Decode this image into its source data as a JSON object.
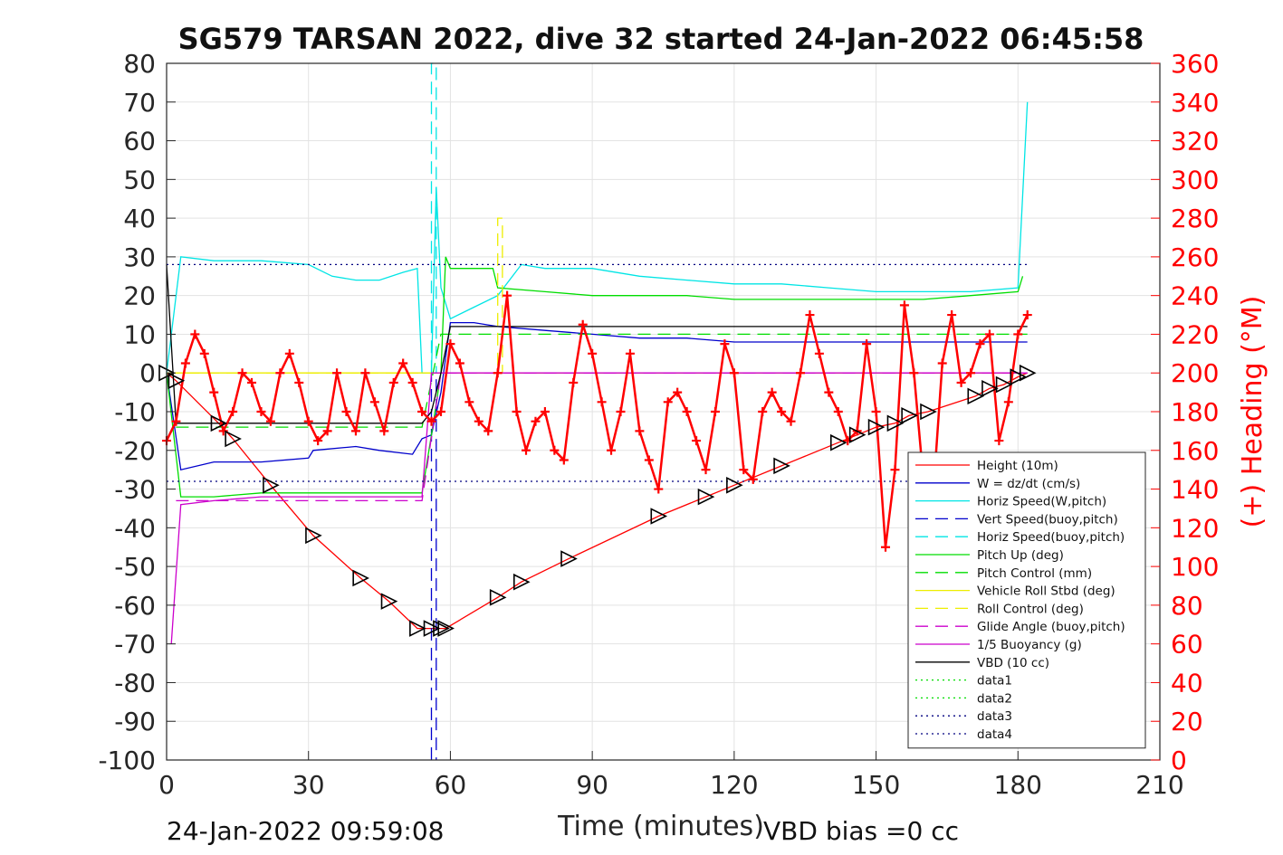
{
  "chart_data": {
    "type": "line",
    "title": "SG579 TARSAN 2022, dive 32 started 24-Jan-2022 06:45:58",
    "xlabel": "Time (minutes)",
    "ylabel_right": "(+) Heading (°M)",
    "footer_left": "24-Jan-2022 09:59:08",
    "footer_right": "VBD bias =0 cc",
    "xlim": [
      0,
      210
    ],
    "ylim": [
      -100,
      80
    ],
    "ylim_right": [
      0,
      360
    ],
    "xticks": [
      0,
      30,
      60,
      90,
      120,
      150,
      180,
      210
    ],
    "xtick_labels": [
      "0",
      "30",
      "60",
      "90",
      "120",
      "150",
      "180",
      "210"
    ],
    "yticks": [
      80,
      70,
      60,
      50,
      40,
      30,
      20,
      10,
      0,
      -10,
      -20,
      -30,
      -40,
      -50,
      -60,
      -70,
      -80,
      -90,
      -100
    ],
    "ytick_labels": [
      "80",
      "70",
      "60",
      "50",
      "40",
      "30",
      "20",
      "10",
      "0",
      "-10",
      "-20",
      "-30",
      "-40",
      "-50",
      "-60",
      "-70",
      "-80",
      "-90",
      "-100"
    ],
    "yticks_right": [
      360,
      340,
      320,
      300,
      280,
      260,
      240,
      220,
      200,
      180,
      160,
      140,
      120,
      100,
      80,
      60,
      40,
      20,
      0
    ],
    "ytick_labels_right": [
      "360",
      "340",
      "320",
      "300",
      "280",
      "260",
      "240",
      "220",
      "200",
      "180",
      "160",
      "140",
      "120",
      "100",
      "80",
      "60",
      "40",
      "20",
      "0"
    ],
    "grid": true,
    "legend_position": "bottom-right",
    "colors": {
      "height": "#ff0000",
      "w": "#0000cc",
      "horiz_speed": "#00e5e5",
      "pitch_up": "#00dd00",
      "roll": "#eeee00",
      "glide": "#cc00cc",
      "vbd": "#000000",
      "heading": "#ff0000"
    },
    "series": [
      {
        "name": "Height (10m)",
        "style": "solid",
        "color": "#ff0000",
        "x": [
          0,
          2,
          11,
          14,
          22,
          31,
          41,
          47,
          53,
          56,
          58,
          59,
          70,
          75,
          85,
          104,
          114,
          120,
          130,
          142,
          146,
          150,
          154,
          157,
          161,
          171,
          174,
          177,
          180,
          182
        ],
        "y": [
          0,
          -2,
          -13,
          -17,
          -29,
          -42,
          -53,
          -59,
          -66,
          -66,
          -66,
          -66,
          -58,
          -54,
          -48,
          -37,
          -32,
          -29,
          -24,
          -18,
          -16,
          -14,
          -13,
          -11,
          -10,
          -6,
          -4,
          -3,
          -1,
          0
        ]
      },
      {
        "name": "W = dz/dt (cm/s)",
        "style": "solid",
        "color": "#0000cc",
        "x": [
          0,
          3,
          10,
          20,
          30,
          31,
          40,
          45,
          52,
          54,
          56,
          58,
          60,
          65,
          70,
          80,
          90,
          100,
          110,
          120,
          130,
          140,
          150,
          160,
          170,
          180,
          182
        ],
        "y": [
          0,
          -25,
          -23,
          -23,
          -22,
          -20,
          -19,
          -20,
          -21,
          -17,
          -16,
          -5,
          13,
          13,
          12,
          11,
          10,
          9,
          9,
          8,
          8,
          8,
          8,
          8,
          8,
          8,
          8
        ]
      },
      {
        "name": "Horiz Speed(W,pitch)",
        "style": "solid",
        "color": "#00e5e5",
        "x": [
          0,
          3,
          10,
          20,
          30,
          35,
          40,
          45,
          50,
          53,
          54,
          56,
          57,
          58,
          60,
          65,
          70,
          75,
          80,
          90,
          100,
          110,
          120,
          130,
          140,
          150,
          160,
          170,
          180,
          182
        ],
        "y": [
          0,
          30,
          29,
          29,
          28,
          25,
          24,
          24,
          26,
          27,
          0,
          0,
          48,
          22,
          14,
          17,
          20,
          28,
          27,
          27,
          25,
          24,
          23,
          23,
          22,
          21,
          21,
          21,
          22,
          70
        ]
      },
      {
        "name": "Vert Speed(buoy,pitch)",
        "style": "dashed",
        "color": "#0000cc",
        "x": [
          56,
          56,
          57,
          57
        ],
        "y": [
          -100,
          0,
          0,
          -100
        ]
      },
      {
        "name": "Horiz Speed(buoy,pitch)",
        "style": "dashed",
        "color": "#00e5e5",
        "x": [
          56,
          56,
          57,
          57
        ],
        "y": [
          0,
          80,
          80,
          0
        ]
      },
      {
        "name": "Pitch Up (deg)",
        "style": "solid",
        "color": "#00dd00",
        "x": [
          0,
          3,
          10,
          20,
          30,
          40,
          50,
          54,
          56,
          58,
          59,
          60,
          65,
          69,
          70,
          80,
          90,
          100,
          110,
          120,
          130,
          140,
          150,
          160,
          170,
          180,
          181
        ],
        "y": [
          0,
          -32,
          -32,
          -31,
          -31,
          -31,
          -31,
          -31,
          -16,
          0,
          30,
          27,
          27,
          27,
          22,
          21,
          20,
          20,
          20,
          19,
          19,
          19,
          19,
          19,
          20,
          21,
          25
        ]
      },
      {
        "name": "Pitch Control (mm)",
        "style": "dashed",
        "color": "#00dd00",
        "x": [
          2,
          54,
          58,
          182
        ],
        "y": [
          -14,
          -14,
          10,
          10
        ]
      },
      {
        "name": "Vehicle Roll Stbd (deg)",
        "style": "solid",
        "color": "#eeee00",
        "x": [
          0,
          10,
          20,
          30,
          40,
          50,
          60,
          70,
          80,
          90,
          100,
          110,
          120,
          130,
          140,
          150,
          160,
          170,
          180
        ],
        "y": [
          0,
          0,
          0,
          0,
          0,
          0,
          0,
          0,
          0,
          0,
          0,
          0,
          0,
          0,
          0,
          0,
          0,
          0,
          0
        ]
      },
      {
        "name": "Roll Control (deg)",
        "style": "dashed",
        "color": "#eeee00",
        "x": [
          0,
          70,
          70,
          71,
          71,
          182
        ],
        "y": [
          0,
          0,
          40,
          40,
          0,
          0
        ]
      },
      {
        "name": "Glide Angle (buoy,pitch)",
        "style": "dashed",
        "color": "#cc00cc",
        "x": [
          2,
          54,
          58,
          182
        ],
        "y": [
          -33,
          -33,
          0,
          0
        ]
      },
      {
        "name": "1/5 Buoyancy (g)",
        "style": "solid",
        "color": "#cc00cc",
        "x": [
          1,
          3,
          10,
          20,
          30,
          40,
          50,
          54,
          56,
          182
        ],
        "y": [
          -70,
          -34,
          -33,
          -32,
          -32,
          -32,
          -32,
          -32,
          0,
          0
        ]
      },
      {
        "name": "VBD (10 cc)",
        "style": "solid",
        "color": "#000000",
        "x": [
          0,
          2,
          54,
          56,
          58,
          60,
          182
        ],
        "y": [
          28,
          -13,
          -13,
          -10,
          0,
          12,
          12
        ]
      },
      {
        "name": "data1",
        "style": "dotted",
        "color": "#00dd00",
        "x": [],
        "y": []
      },
      {
        "name": "data2",
        "style": "dotted",
        "color": "#00dd00",
        "x": [],
        "y": []
      },
      {
        "name": "data3",
        "style": "dotted",
        "color": "#000080",
        "x": [
          0,
          182
        ],
        "y": [
          28,
          28
        ]
      },
      {
        "name": "data4",
        "style": "dotted",
        "color": "#000080",
        "x": [
          0,
          182
        ],
        "y": [
          -28,
          -28
        ]
      }
    ],
    "heading_series": {
      "axis": "right",
      "color": "#ff0000",
      "marker": "+",
      "x": [
        0,
        2,
        4,
        6,
        8,
        10,
        12,
        14,
        16,
        18,
        20,
        22,
        24,
        26,
        28,
        30,
        32,
        34,
        36,
        38,
        40,
        42,
        44,
        46,
        48,
        50,
        52,
        54,
        56,
        58,
        60,
        62,
        64,
        66,
        68,
        70,
        72,
        74,
        76,
        78,
        80,
        82,
        84,
        86,
        88,
        90,
        92,
        94,
        96,
        98,
        100,
        102,
        104,
        106,
        108,
        110,
        112,
        114,
        116,
        118,
        120,
        122,
        124,
        126,
        128,
        130,
        132,
        134,
        136,
        138,
        140,
        142,
        144,
        146,
        148,
        150,
        152,
        154,
        156,
        158,
        160,
        162,
        164,
        166,
        168,
        170,
        172,
        174,
        176,
        178,
        180,
        182
      ],
      "y": [
        165,
        175,
        205,
        220,
        210,
        190,
        170,
        180,
        200,
        195,
        180,
        175,
        200,
        210,
        195,
        175,
        165,
        170,
        200,
        180,
        170,
        200,
        185,
        170,
        195,
        205,
        195,
        180,
        175,
        180,
        215,
        205,
        185,
        175,
        170,
        200,
        240,
        180,
        160,
        175,
        180,
        160,
        155,
        195,
        225,
        210,
        185,
        160,
        180,
        210,
        170,
        155,
        140,
        185,
        190,
        180,
        165,
        150,
        180,
        215,
        200,
        150,
        145,
        180,
        190,
        180,
        175,
        200,
        230,
        210,
        190,
        180,
        165,
        170,
        215,
        180,
        110,
        150,
        235,
        200,
        145,
        135,
        205,
        230,
        195,
        200,
        215,
        220,
        165,
        185,
        220,
        230
      ]
    }
  }
}
